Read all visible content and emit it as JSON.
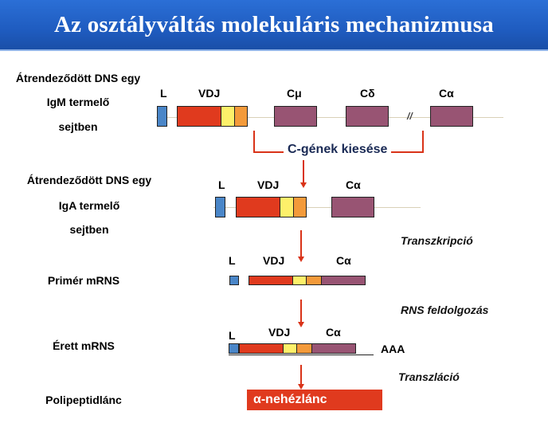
{
  "title": "Az osztályváltás molekuláris mechanizmusa",
  "rows": {
    "igm": {
      "label_lines": [
        "Átrendeződött DNS egy",
        "IgM termelő",
        "sejtben"
      ],
      "segments": {
        "l": "L",
        "vdj": "VDJ",
        "cmu": "Cμ",
        "cdelta": "Cδ",
        "calpha": "Cα"
      },
      "break_mark": "//"
    },
    "deletion": "C-gének kiesése",
    "iga": {
      "label_lines": [
        "Átrendeződött DNS egy",
        "IgA termelő",
        "sejtben"
      ],
      "segments": {
        "l": "L",
        "vdj": "VDJ",
        "calpha": "Cα"
      }
    },
    "primary": {
      "label": "Primér mRNS",
      "segments": {
        "l": "L",
        "vdj": "VDJ",
        "calpha": "Cα"
      }
    },
    "mature": {
      "label": "Érett mRNS",
      "segments": {
        "l": "L",
        "vdj": "VDJ",
        "calpha": "Cα"
      },
      "polya": "AAA"
    },
    "polypeptide": {
      "label": "Polipeptidlánc",
      "chain": "α-nehézlánc"
    }
  },
  "steps": {
    "transcription": "Transzkripció",
    "processing": "RNS feldolgozás",
    "translation": "Transzláció"
  },
  "colors": {
    "title_bg": "#1f5cc0",
    "leader": "#4a86c8",
    "v": "#e03a1e",
    "d": "#fdf06a",
    "j": "#f39a3a",
    "constant": "#985473",
    "arrow": "#d93318"
  }
}
